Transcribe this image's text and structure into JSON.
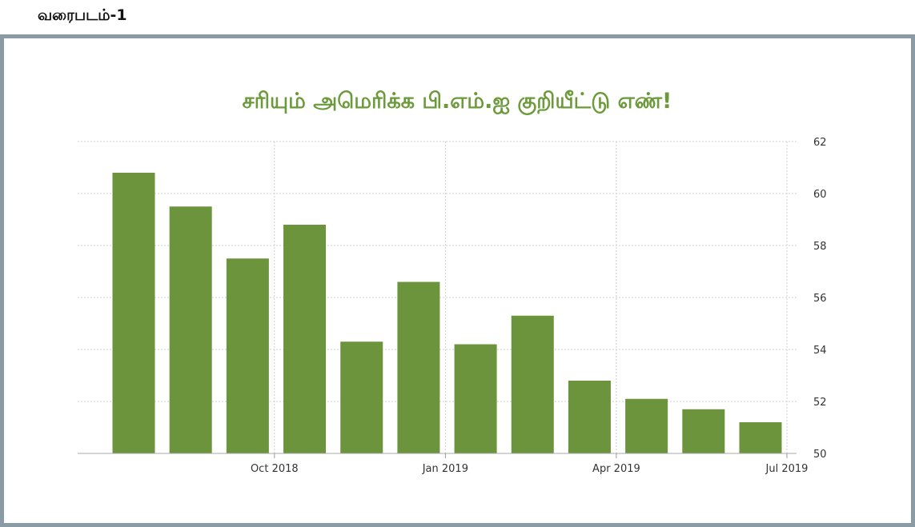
{
  "figure_label": "வரைபடம்-1",
  "chart_data": {
    "type": "bar",
    "title": "சரியும் அமெரிக்க பி.எம்.ஐ குறியீட்டு எண்!",
    "values": [
      60.8,
      59.5,
      57.5,
      58.8,
      54.3,
      56.6,
      54.2,
      55.3,
      52.8,
      52.1,
      51.7,
      51.2
    ],
    "x_tick_labels": [
      "Oct 2018",
      "Jan 2019",
      "Apr 2019",
      "Jul 2019"
    ],
    "y_ticks": [
      "50",
      "52",
      "54",
      "56",
      "58",
      "60",
      "62"
    ],
    "ylim": [
      50,
      62
    ],
    "grid": true,
    "color": "#6b943c"
  }
}
